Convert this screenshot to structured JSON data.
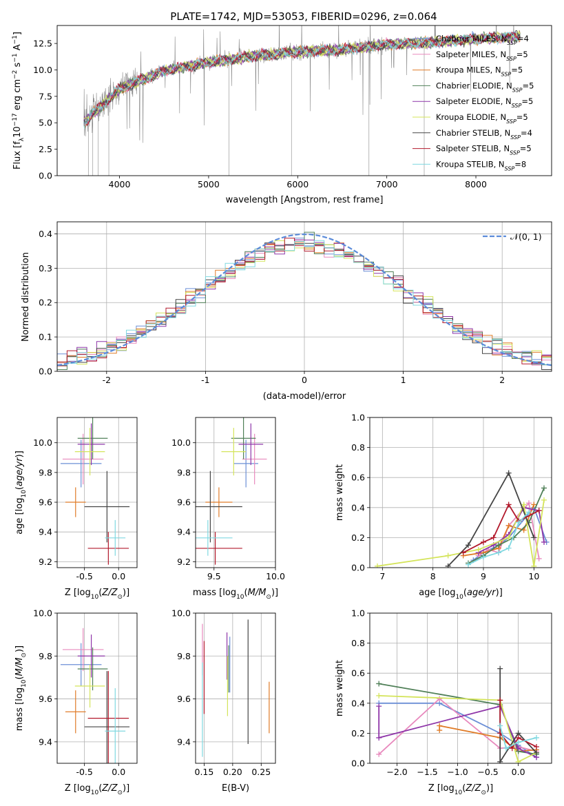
{
  "title": "PLATE=1742, MJD=53053, FIBERID=0296, z=0.064",
  "colors": {
    "chabrier_miles": "#6b8fd6",
    "salpeter_miles": "#e889bd",
    "kroupa_miles": "#e07b27",
    "chabrier_elodie": "#4f7f57",
    "salpeter_elodie": "#8e35a8",
    "kroupa_elodie": "#d4e45a",
    "chabrier_stelib": "#444444",
    "salpeter_stelib": "#b2182b",
    "kroupa_stelib": "#7fd8e0",
    "data": "#888888",
    "normal": "#5b8bd9"
  },
  "chart_data": [
    {
      "id": "spectrum",
      "type": "line",
      "xlabel": "wavelength [Angstrom, rest frame]",
      "ylabel": "Flux [f_λ 10^-17 erg cm^-2 s^-1 A^-1]",
      "xlim": [
        3300,
        8850
      ],
      "ylim": [
        0,
        14.2
      ],
      "xticks": [
        "4000",
        "5000",
        "6000",
        "7000",
        "8000"
      ],
      "yticks": [
        "0.0",
        "2.5",
        "5.0",
        "7.5",
        "10.0",
        "12.5"
      ],
      "data_trend": {
        "x": [
          3600,
          4000,
          4500,
          5000,
          5500,
          6000,
          6500,
          7000,
          7500,
          8000,
          8500
        ],
        "y": [
          5.0,
          8.2,
          9.9,
          10.7,
          11.3,
          11.7,
          11.9,
          12.4,
          12.6,
          12.9,
          13.2
        ]
      },
      "legend": [
        {
          "label": "Chabrier MILES, N",
          "sub": "SSP",
          "tail": "=4",
          "key": "chabrier_miles"
        },
        {
          "label": "Salpeter MILES, N",
          "sub": "SSP",
          "tail": "=5",
          "key": "salpeter_miles"
        },
        {
          "label": "Kroupa MILES, N",
          "sub": "SSP",
          "tail": "=5",
          "key": "kroupa_miles"
        },
        {
          "label": "Chabrier ELODIE, N",
          "sub": "SSP",
          "tail": "=5",
          "key": "chabrier_elodie"
        },
        {
          "label": "Salpeter ELODIE, N",
          "sub": "SSP",
          "tail": "=5",
          "key": "salpeter_elodie"
        },
        {
          "label": "Kroupa ELODIE, N",
          "sub": "SSP",
          "tail": "=5",
          "key": "kroupa_elodie"
        },
        {
          "label": "Chabrier STELIB, N",
          "sub": "SSP",
          "tail": "=4",
          "key": "chabrier_stelib"
        },
        {
          "label": "Salpeter STELIB, N",
          "sub": "SSP",
          "tail": "=5",
          "key": "salpeter_stelib"
        },
        {
          "label": "Kroupa STELIB, N",
          "sub": "SSP",
          "tail": "=8",
          "key": "kroupa_stelib"
        }
      ]
    },
    {
      "id": "residuals",
      "type": "line",
      "xlabel": "(data-model)/error",
      "ylabel": "Normed distribution",
      "xlim": [
        -2.5,
        2.5
      ],
      "ylim": [
        0,
        0.435
      ],
      "xticks": [
        -2,
        -1,
        0,
        1,
        2
      ],
      "yticks": [
        "0.0",
        "0.1",
        "0.2",
        "0.3",
        "0.4"
      ],
      "legend": "𝒩(0, 1)",
      "bin_width": 0.1
    },
    {
      "id": "age_vs_Z",
      "type": "scatter",
      "xlabel": "Z [log10(Z/Z⊙)]",
      "ylabel": "age [log10(age/yr)]",
      "xlim": [
        -0.9,
        0.27
      ],
      "ylim": [
        9.16,
        10.17
      ],
      "xticks": [
        "-0.5",
        "0.0"
      ],
      "yticks": [
        "9.2",
        "9.4",
        "9.6",
        "9.8",
        "10.0"
      ],
      "points": [
        {
          "key": "chabrier_miles",
          "x": -0.55,
          "xerr": 0.3,
          "y": 9.86,
          "yerr": 0.16
        },
        {
          "key": "salpeter_miles",
          "x": -0.52,
          "xerr": 0.3,
          "y": 9.89,
          "yerr": 0.17
        },
        {
          "key": "kroupa_miles",
          "x": -0.63,
          "xerr": 0.15,
          "y": 9.6,
          "yerr": 0.1
        },
        {
          "key": "chabrier_elodie",
          "x": -0.38,
          "xerr": 0.22,
          "y": 10.03,
          "yerr": 0.14
        },
        {
          "key": "salpeter_elodie",
          "x": -0.4,
          "xerr": 0.2,
          "y": 9.99,
          "yerr": 0.14
        },
        {
          "key": "kroupa_elodie",
          "x": -0.42,
          "xerr": 0.22,
          "y": 9.94,
          "yerr": 0.16
        },
        {
          "key": "chabrier_stelib",
          "x": -0.17,
          "xerr": 0.33,
          "y": 9.57,
          "yerr": 0.24
        },
        {
          "key": "salpeter_stelib",
          "x": -0.15,
          "xerr": 0.3,
          "y": 9.29,
          "yerr": 0.11
        },
        {
          "key": "kroupa_stelib",
          "x": -0.05,
          "xerr": 0.15,
          "y": 9.36,
          "yerr": 0.12
        }
      ]
    },
    {
      "id": "age_vs_mass",
      "type": "scatter",
      "xlabel": "mass [log10(M/M⊙)]",
      "ylabel": "",
      "xlim": [
        9.35,
        10.0
      ],
      "ylim": [
        9.16,
        10.17
      ],
      "xticks": [
        "9.5",
        "10.0"
      ],
      "yticks": [
        "9.2",
        "9.4",
        "9.6",
        "9.8",
        "10.0"
      ],
      "points": [
        {
          "key": "chabrier_miles",
          "x": 9.76,
          "xerr": 0.1,
          "y": 9.86,
          "yerr": 0.16
        },
        {
          "key": "salpeter_miles",
          "x": 9.83,
          "xerr": 0.1,
          "y": 9.89,
          "yerr": 0.17
        },
        {
          "key": "kroupa_miles",
          "x": 9.54,
          "xerr": 0.11,
          "y": 9.6,
          "yerr": 0.1
        },
        {
          "key": "chabrier_elodie",
          "x": 9.74,
          "xerr": 0.1,
          "y": 10.03,
          "yerr": 0.14
        },
        {
          "key": "salpeter_elodie",
          "x": 9.8,
          "xerr": 0.1,
          "y": 9.99,
          "yerr": 0.14
        },
        {
          "key": "kroupa_elodie",
          "x": 9.66,
          "xerr": 0.1,
          "y": 9.94,
          "yerr": 0.16
        },
        {
          "key": "chabrier_stelib",
          "x": 9.47,
          "xerr": 0.26,
          "y": 9.57,
          "yerr": 0.24
        },
        {
          "key": "salpeter_stelib",
          "x": 9.51,
          "xerr": 0.22,
          "y": 9.29,
          "yerr": 0.11
        },
        {
          "key": "kroupa_stelib",
          "x": 9.45,
          "xerr": 0.2,
          "y": 9.36,
          "yerr": 0.12
        }
      ]
    },
    {
      "id": "weight_vs_age",
      "type": "line",
      "xlabel": "age [log10(age/yr)]",
      "ylabel": "mass weight",
      "xlim": [
        6.75,
        10.35
      ],
      "ylim": [
        0,
        1
      ],
      "xticks": [
        "7",
        "8",
        "9",
        "10"
      ],
      "yticks": [
        "0.0",
        "0.2",
        "0.4",
        "0.6",
        "0.8",
        "1.0"
      ],
      "series": [
        {
          "key": "chabrier_miles",
          "x": [
            8.8,
            9.0,
            9.3,
            9.5,
            10.0,
            10.25
          ],
          "y": [
            0.05,
            0.1,
            0.15,
            0.2,
            0.4,
            0.17
          ]
        },
        {
          "key": "salpeter_miles",
          "x": [
            8.9,
            9.1,
            9.3,
            9.5,
            9.9,
            10.1
          ],
          "y": [
            0.08,
            0.12,
            0.1,
            0.28,
            0.43,
            0.06
          ]
        },
        {
          "key": "kroupa_miles",
          "x": [
            8.6,
            9.0,
            9.3,
            9.5,
            9.8,
            10.0
          ],
          "y": [
            0.08,
            0.1,
            0.13,
            0.28,
            0.25,
            0.42
          ]
        },
        {
          "key": "chabrier_elodie",
          "x": [
            8.7,
            9.0,
            9.3,
            9.6,
            9.9,
            10.2
          ],
          "y": [
            0.03,
            0.08,
            0.15,
            0.2,
            0.3,
            0.53
          ]
        },
        {
          "key": "salpeter_elodie",
          "x": [
            8.9,
            9.2,
            9.5,
            9.8,
            10.1,
            10.2
          ],
          "y": [
            0.1,
            0.15,
            0.22,
            0.4,
            0.38,
            0.17
          ]
        },
        {
          "key": "kroupa_elodie",
          "x": [
            6.9,
            8.3,
            8.9,
            9.5,
            9.8,
            10.0,
            10.2
          ],
          "y": [
            0.01,
            0.08,
            0.12,
            0.2,
            0.42,
            0.01,
            0.45
          ]
        },
        {
          "key": "chabrier_stelib",
          "x": [
            8.3,
            8.7,
            9.5,
            10.0
          ],
          "y": [
            0.01,
            0.15,
            0.63,
            0.2
          ]
        },
        {
          "key": "salpeter_stelib",
          "x": [
            8.6,
            9.0,
            9.2,
            9.5,
            9.7,
            10.1
          ],
          "y": [
            0.1,
            0.17,
            0.2,
            0.42,
            0.31,
            0.38
          ]
        },
        {
          "key": "kroupa_stelib",
          "x": [
            8.7,
            9.0,
            9.3,
            9.5,
            9.7,
            9.9
          ],
          "y": [
            0.02,
            0.07,
            0.1,
            0.13,
            0.3,
            0.37
          ]
        }
      ]
    },
    {
      "id": "mass_vs_Z",
      "type": "scatter",
      "xlabel": "Z [log10(Z/Z⊙)]",
      "ylabel": "mass [log10(M/M⊙)]",
      "xlim": [
        -0.9,
        0.27
      ],
      "ylim": [
        9.3,
        10.0
      ],
      "xticks": [
        "-0.5",
        "0.0"
      ],
      "yticks": [
        "9.4",
        "9.6",
        "9.8",
        "10.0"
      ],
      "points": [
        {
          "key": "chabrier_miles",
          "x": -0.55,
          "xerr": 0.3,
          "y": 9.76,
          "yerr": 0.1
        },
        {
          "key": "salpeter_miles",
          "x": -0.52,
          "xerr": 0.3,
          "y": 9.83,
          "yerr": 0.1
        },
        {
          "key": "kroupa_miles",
          "x": -0.63,
          "xerr": 0.15,
          "y": 9.54,
          "yerr": 0.1
        },
        {
          "key": "chabrier_elodie",
          "x": -0.38,
          "xerr": 0.22,
          "y": 9.74,
          "yerr": 0.1
        },
        {
          "key": "salpeter_elodie",
          "x": -0.4,
          "xerr": 0.2,
          "y": 9.8,
          "yerr": 0.1
        },
        {
          "key": "kroupa_elodie",
          "x": -0.42,
          "xerr": 0.22,
          "y": 9.66,
          "yerr": 0.1
        },
        {
          "key": "chabrier_stelib",
          "x": -0.17,
          "xerr": 0.33,
          "y": 9.47,
          "yerr": 0.26
        },
        {
          "key": "salpeter_stelib",
          "x": -0.15,
          "xerr": 0.3,
          "y": 9.51,
          "yerr": 0.22
        },
        {
          "key": "kroupa_stelib",
          "x": -0.05,
          "xerr": 0.15,
          "y": 9.45,
          "yerr": 0.2
        }
      ]
    },
    {
      "id": "mass_vs_ebv",
      "type": "scatter",
      "xlabel": "E(B-V)",
      "ylabel": "",
      "xlim": [
        0.135,
        0.275
      ],
      "ylim": [
        9.3,
        10.0
      ],
      "xticks": [
        "0.15",
        "0.20",
        "0.25"
      ],
      "yticks": [
        "9.4",
        "9.6",
        "9.8",
        "10.0"
      ],
      "points": [
        {
          "key": "chabrier_miles",
          "x": 0.195,
          "y": 9.76,
          "yerr": 0.13
        },
        {
          "key": "salpeter_miles",
          "x": 0.147,
          "y": 9.83,
          "yerr": 0.12
        },
        {
          "key": "kroupa_miles",
          "x": 0.264,
          "y": 9.56,
          "yerr": 0.12
        },
        {
          "key": "chabrier_elodie",
          "x": 0.193,
          "y": 9.74,
          "yerr": 0.11
        },
        {
          "key": "salpeter_elodie",
          "x": 0.19,
          "y": 9.8,
          "yerr": 0.11
        },
        {
          "key": "kroupa_elodie",
          "x": 0.191,
          "y": 9.66,
          "yerr": 0.14
        },
        {
          "key": "chabrier_stelib",
          "x": 0.227,
          "y": 9.68,
          "yerr": 0.29
        },
        {
          "key": "salpeter_stelib",
          "x": 0.15,
          "y": 9.7,
          "yerr": 0.17
        },
        {
          "key": "kroupa_stelib",
          "x": 0.147,
          "y": 9.55,
          "yerr": 0.22
        }
      ]
    },
    {
      "id": "weight_vs_Z",
      "type": "line",
      "xlabel": "Z [log10(Z/Z⊙)]",
      "ylabel": "mass weight",
      "xlim": [
        -2.45,
        0.55
      ],
      "ylim": [
        0,
        1
      ],
      "xticks": [
        "−2.0",
        "−1.5",
        "−1.0",
        "−0.5",
        "0.0"
      ],
      "yticks": [
        "0.0",
        "0.2",
        "0.4",
        "0.6",
        "0.8",
        "1.0"
      ],
      "series": [
        {
          "key": "chabrier_miles",
          "x": [
            -2.3,
            -1.3,
            -0.3,
            0.0,
            0.3
          ],
          "y": [
            0.4,
            0.4,
            0.2,
            0.12,
            0.04
          ]
        },
        {
          "key": "salpeter_miles",
          "x": [
            -2.3,
            -1.3,
            -0.3,
            0.0,
            0.3
          ],
          "y": [
            0.06,
            0.43,
            0.1,
            0.11,
            0.08
          ]
        },
        {
          "key": "kroupa_miles",
          "x": [
            -1.3,
            -1.3,
            -0.3,
            0.0,
            0.3
          ],
          "y": [
            0.22,
            0.25,
            0.17,
            0.08,
            0.09
          ]
        },
        {
          "key": "chabrier_elodie",
          "x": [
            -2.3,
            -0.3,
            0.0,
            0.3
          ],
          "y": [
            0.53,
            0.39,
            0.08,
            0.06
          ]
        },
        {
          "key": "salpeter_elodie",
          "x": [
            -2.3,
            -2.3,
            -0.3,
            0.0,
            0.3
          ],
          "y": [
            0.38,
            0.17,
            0.38,
            0.1,
            0.04
          ]
        },
        {
          "key": "kroupa_elodie",
          "x": [
            -2.3,
            -0.3,
            0.0,
            0.3
          ],
          "y": [
            0.45,
            0.42,
            0.01,
            0.07
          ]
        },
        {
          "key": "chabrier_stelib",
          "x": [
            -0.3,
            -0.3,
            0.0,
            0.3
          ],
          "y": [
            0.63,
            0.01,
            0.2,
            0.07
          ]
        },
        {
          "key": "salpeter_stelib",
          "x": [
            -0.3,
            -0.3,
            -0.1,
            0.0,
            0.3
          ],
          "y": [
            0.42,
            0.2,
            0.1,
            0.17,
            0.11
          ]
        },
        {
          "key": "kroupa_stelib",
          "x": [
            -0.3,
            -0.2,
            0.0,
            0.3
          ],
          "y": [
            0.25,
            0.1,
            0.14,
            0.17
          ]
        }
      ]
    }
  ]
}
